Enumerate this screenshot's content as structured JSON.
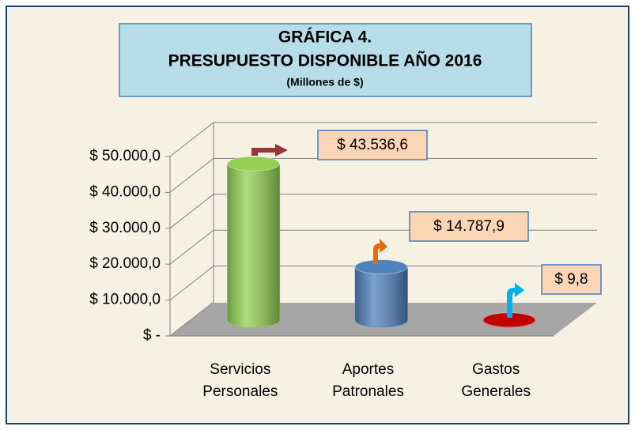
{
  "chart_data": {
    "type": "bar3d",
    "title": [
      "GRÁFICA 4.",
      "PRESUPUESTO DISPONIBLE AÑO 2016"
    ],
    "subtitle": "(Millones de $)",
    "categories": [
      "Servicios Personales",
      "Aportes Patronales",
      "Gastos Generales"
    ],
    "values": [
      43536.6,
      14787.9,
      9.8
    ],
    "value_labels": [
      "$ 43.536,6",
      "$ 14.787,9",
      "$ 9,8"
    ],
    "colors": [
      "#92d050",
      "#4f81bd",
      "#c00000"
    ],
    "ylim": [
      0,
      50000
    ],
    "yticks": [
      {
        "value": 0,
        "label": "$ -"
      },
      {
        "value": 10000,
        "label": "$ 10.000,0"
      },
      {
        "value": 20000,
        "label": "$ 20.000,0"
      },
      {
        "value": 30000,
        "label": "$ 30.000,0"
      },
      {
        "value": 40000,
        "label": "$ 40.000,0"
      },
      {
        "value": 50000,
        "label": "$ 50.000,0"
      }
    ],
    "grid": true
  }
}
